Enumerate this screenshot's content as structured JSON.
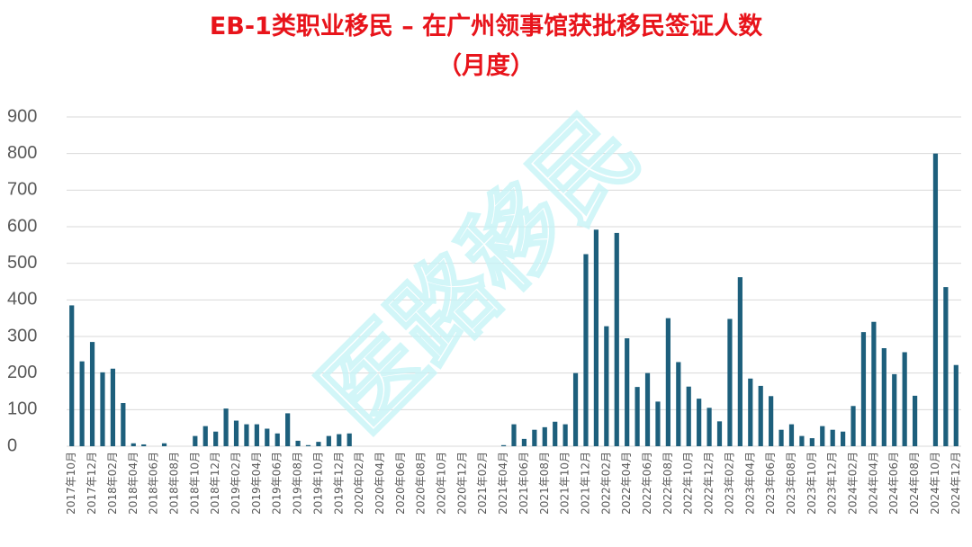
{
  "chart_data": {
    "type": "bar",
    "title": "EB-1类职业移民 – 在广州领事馆获批移民签证人数",
    "subtitle": "（月度）",
    "watermark": "医路移民",
    "color": "#1d5f7c",
    "grid": true,
    "ylim": [
      0,
      900
    ],
    "yticks": [
      0,
      100,
      200,
      300,
      400,
      500,
      600,
      700,
      800,
      900
    ],
    "categories": [
      "2017年10月",
      null,
      "2017年12月",
      null,
      "2018年02月",
      null,
      "2018年04月",
      null,
      "2018年06月",
      null,
      "2018年08月",
      null,
      "2018年10月",
      null,
      "2018年12月",
      null,
      "2019年02月",
      null,
      "2019年04月",
      null,
      "2019年06月",
      null,
      "2019年08月",
      null,
      "2019年10月",
      null,
      "2019年12月",
      null,
      "2020年02月",
      null,
      "2020年04月",
      null,
      "2020年06月",
      null,
      "2020年08月",
      null,
      "2020年10月",
      null,
      "2020年12月",
      null,
      "2021年02月",
      null,
      "2021年04月",
      null,
      "2021年06月",
      null,
      "2021年08月",
      null,
      "2021年10月",
      null,
      "2021年12月",
      null,
      "2022年02月",
      null,
      "2022年04月",
      null,
      "2022年06月",
      null,
      "2022年08月",
      null,
      "2022年10月",
      null,
      "2022年12月",
      null,
      "2023年02月",
      null,
      "2023年04月",
      null,
      "2023年06月",
      null,
      "2023年08月",
      null,
      "2023年10月",
      null,
      "2023年12月",
      null,
      "2024年02月",
      null,
      "2024年04月",
      null,
      "2024年06月",
      null,
      "2024年08月",
      null,
      "2024年10月",
      null,
      "2024年12月"
    ],
    "values": [
      385,
      232,
      285,
      202,
      212,
      118,
      8,
      5,
      0,
      8,
      0,
      0,
      28,
      55,
      40,
      103,
      70,
      60,
      60,
      48,
      35,
      90,
      15,
      3,
      12,
      28,
      33,
      35,
      0,
      0,
      0,
      0,
      0,
      0,
      0,
      0,
      0,
      0,
      0,
      0,
      0,
      0,
      3,
      60,
      20,
      45,
      52,
      67,
      60,
      200,
      525,
      592,
      328,
      583,
      295,
      162,
      200,
      122,
      350,
      230,
      163,
      130,
      105,
      68,
      348,
      462,
      185,
      165,
      137,
      45,
      60,
      28,
      22,
      55,
      45,
      40,
      110,
      312,
      340,
      268,
      197,
      257,
      138,
      0,
      800,
      435,
      222
    ]
  }
}
